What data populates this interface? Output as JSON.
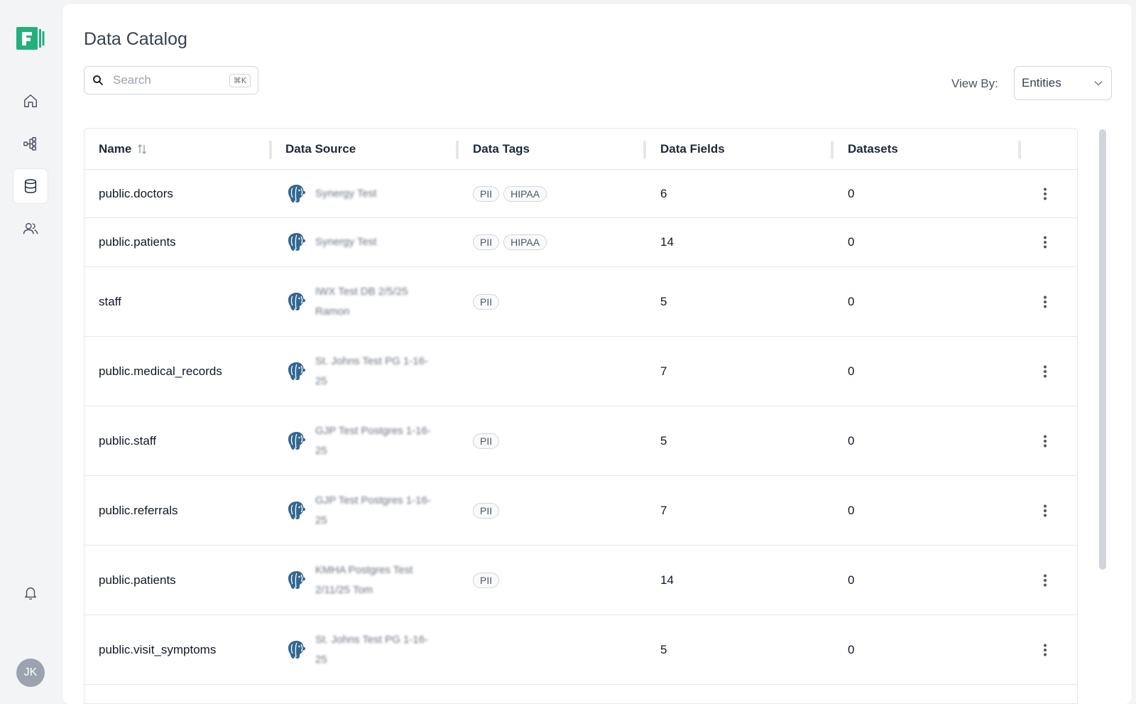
{
  "user": {
    "initials": "JK"
  },
  "page": {
    "title": "Data Catalog"
  },
  "search": {
    "placeholder": "Search",
    "shortcut": "⌘K"
  },
  "view_by": {
    "label": "View By:",
    "value": "Entities"
  },
  "table": {
    "columns": [
      "Name",
      "Data Source",
      "Data Tags",
      "Data Fields",
      "Datasets"
    ],
    "rows": [
      {
        "name": "public.doctors",
        "source": "Synergy Test",
        "tags": [
          "PII",
          "HIPAA"
        ],
        "fields": "6",
        "datasets": "0"
      },
      {
        "name": "public.patients",
        "source": "Synergy Test",
        "tags": [
          "PII",
          "HIPAA"
        ],
        "fields": "14",
        "datasets": "0"
      },
      {
        "name": "staff",
        "source": "IWX Test DB 2/5/25 Ramon",
        "tags": [
          "PII"
        ],
        "fields": "5",
        "datasets": "0"
      },
      {
        "name": "public.medical_records",
        "source": "St. Johns Test PG 1-16-25",
        "tags": [],
        "fields": "7",
        "datasets": "0"
      },
      {
        "name": "public.staff",
        "source": "GJP Test Postgres 1-16-25",
        "tags": [
          "PII"
        ],
        "fields": "5",
        "datasets": "0"
      },
      {
        "name": "public.referrals",
        "source": "GJP Test Postgres 1-16-25",
        "tags": [
          "PII"
        ],
        "fields": "7",
        "datasets": "0"
      },
      {
        "name": "public.patients",
        "source": "KMHA Postgres Test 2/11/25 Tom",
        "tags": [
          "PII"
        ],
        "fields": "14",
        "datasets": "0"
      },
      {
        "name": "public.visit_symptoms",
        "source": "St. Johns Test PG 1-16-25",
        "tags": [],
        "fields": "5",
        "datasets": "0"
      }
    ]
  },
  "colors": {
    "brand": "#22b07d",
    "postgres": "#336791"
  }
}
